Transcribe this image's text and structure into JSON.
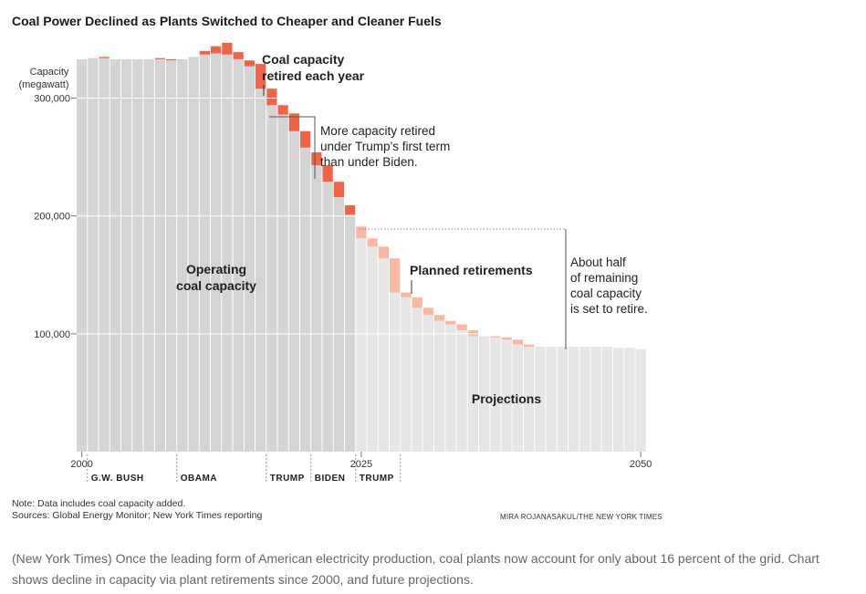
{
  "title": "Coal Power Declined as Plants Switched to Cheaper and Cleaner Fuels",
  "colors": {
    "operating": "#d4d4d4",
    "projected": "#e6e6e6",
    "retired": "#ee6447",
    "planned": "#f8b8a2",
    "gridline": "#ffffff"
  },
  "chart_data": {
    "type": "bar",
    "ylabel_line1": "Capacity",
    "ylabel_line2": "(megawatt)",
    "ylim": [
      0,
      345000
    ],
    "yticks": [
      {
        "value": 100000,
        "label": "100,000"
      },
      {
        "value": 200000,
        "label": "200,000"
      },
      {
        "value": 300000,
        "label": "300,000"
      }
    ],
    "xticks": [
      {
        "year": 2000,
        "label": "2000"
      },
      {
        "year": 2025,
        "label": "2025"
      },
      {
        "year": 2050,
        "label": "2050"
      }
    ],
    "series": [
      {
        "name": "Operating coal capacity",
        "years": [
          2000,
          2001,
          2002,
          2003,
          2004,
          2005,
          2006,
          2007,
          2008,
          2009,
          2010,
          2011,
          2012,
          2013,
          2014,
          2015,
          2016,
          2017,
          2018,
          2019,
          2020,
          2021,
          2022,
          2023,
          2024
        ],
        "values": [
          333000,
          334000,
          334000,
          333000,
          333000,
          333000,
          333000,
          333000,
          332000,
          333000,
          335000,
          337000,
          338000,
          337000,
          333000,
          327000,
          308000,
          294000,
          286000,
          272000,
          258000,
          243000,
          229000,
          216000,
          201000
        ]
      },
      {
        "name": "Coal capacity retired each year",
        "years": [
          2000,
          2001,
          2002,
          2003,
          2004,
          2005,
          2006,
          2007,
          2008,
          2009,
          2010,
          2011,
          2012,
          2013,
          2014,
          2015,
          2016,
          2017,
          2018,
          2019,
          2020,
          2021,
          2022,
          2023,
          2024
        ],
        "values": [
          0,
          0,
          1000,
          0,
          0,
          0,
          0,
          1000,
          1000,
          0,
          0,
          3000,
          6000,
          10000,
          6000,
          5000,
          21000,
          14000,
          8000,
          15000,
          14000,
          11000,
          14000,
          13000,
          8000
        ]
      },
      {
        "name": "Projections",
        "years": [
          2025,
          2026,
          2027,
          2028,
          2029,
          2030,
          2031,
          2032,
          2033,
          2034,
          2035,
          2036,
          2037,
          2038,
          2039,
          2040,
          2041,
          2042,
          2043,
          2044,
          2045,
          2046,
          2047,
          2048,
          2049,
          2050
        ],
        "values": [
          181000,
          174000,
          164000,
          135000,
          131000,
          122000,
          116000,
          111000,
          108000,
          103000,
          98000,
          98000,
          97000,
          95000,
          91000,
          89000,
          89000,
          89000,
          89000,
          89000,
          89000,
          89000,
          89000,
          88000,
          88000,
          87000
        ]
      },
      {
        "name": "Planned retirements",
        "years": [
          2025,
          2026,
          2027,
          2028,
          2029,
          2030,
          2031,
          2032,
          2033,
          2034,
          2035,
          2036,
          2037,
          2038,
          2039,
          2040,
          2041,
          2042,
          2043,
          2044,
          2045,
          2046,
          2047,
          2048,
          2049,
          2050
        ],
        "values": [
          10000,
          7000,
          10000,
          29000,
          4000,
          9000,
          6000,
          5000,
          3000,
          5000,
          5000,
          0,
          1000,
          2000,
          4000,
          2000,
          0,
          0,
          0,
          0,
          0,
          0,
          0,
          0,
          0,
          0
        ]
      }
    ],
    "eras": [
      {
        "label": "G.W. BUSH",
        "start": 2001,
        "end": 2009
      },
      {
        "label": "OBAMA",
        "start": 2009,
        "end": 2017
      },
      {
        "label": "TRUMP",
        "start": 2017,
        "end": 2021
      },
      {
        "label": "BIDEN",
        "start": 2021,
        "end": 2025
      },
      {
        "label": "TRUMP",
        "start": 2025,
        "end": 2029
      }
    ],
    "annotations": {
      "retired_each_year": [
        "Coal capacity",
        "retired each year"
      ],
      "trump_vs_biden": [
        "More capacity retired",
        "under Trump’s first term",
        "than under Biden."
      ],
      "operating": [
        "Operating",
        "coal capacity"
      ],
      "planned": [
        "Planned retirements"
      ],
      "about_half": [
        "About half",
        "of remaining",
        "coal capacity",
        "is set to retire."
      ],
      "projections": [
        "Projections"
      ]
    }
  },
  "note": "Note: Data includes coal capacity added.",
  "sources": "Sources: Global Energy Monitor; New York Times reporting",
  "credit": "MIRA ROJANASAKUL/THE NEW YORK TIMES",
  "caption": "(New York Times) Once the leading form of American electricity production, coal plants now account for only about 16 percent of the grid. Chart shows decline in capacity via plant retirements since 2000, and future projections."
}
